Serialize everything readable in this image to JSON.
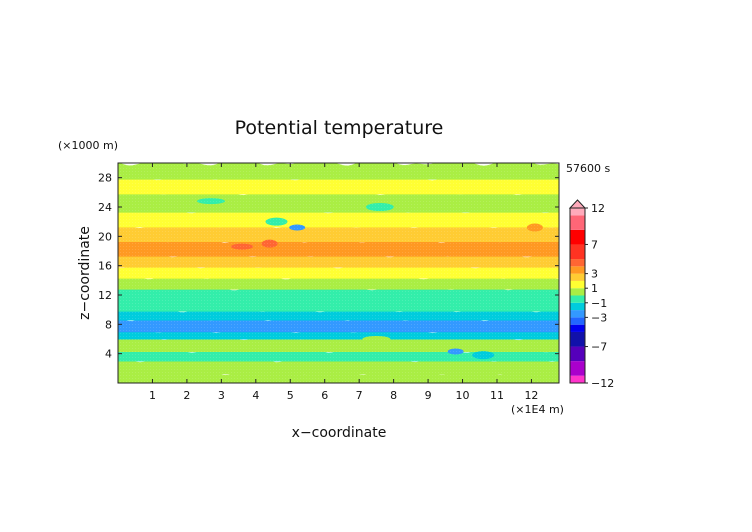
{
  "chart_data": {
    "type": "heatmap",
    "title": "Potential temperature",
    "time_label": "57600 s",
    "xlabel": "x−coordinate",
    "ylabel": "z−coordinate",
    "x_unit": "(×1E4 m)",
    "y_unit": "(×1000 m)",
    "xlim": [
      0,
      12.8
    ],
    "ylim": [
      0,
      30
    ],
    "xticks": [
      1,
      2,
      3,
      4,
      5,
      6,
      7,
      8,
      9,
      10,
      11,
      12
    ],
    "yticks": [
      4,
      8,
      12,
      16,
      20,
      24,
      28
    ],
    "colorbar": {
      "tick_labels": [
        "12",
        "7",
        "3",
        "1",
        "−1",
        "−3",
        "−7",
        "−12"
      ],
      "tick_values": [
        12,
        7,
        3,
        1,
        -1,
        -3,
        -7,
        -12
      ],
      "levels": [
        {
          "from": -12,
          "to": -11,
          "color": "#ff33cc"
        },
        {
          "from": -11,
          "to": -9,
          "color": "#aa00cc"
        },
        {
          "from": -9,
          "to": -7,
          "color": "#5500bb"
        },
        {
          "from": -7,
          "to": -5,
          "color": "#1111aa"
        },
        {
          "from": -5,
          "to": -4,
          "color": "#0000ee"
        },
        {
          "from": -4,
          "to": -3,
          "color": "#2266ff"
        },
        {
          "from": -3,
          "to": -2,
          "color": "#3399ff"
        },
        {
          "from": -2,
          "to": -1,
          "color": "#00ccdd"
        },
        {
          "from": -1,
          "to": 0,
          "color": "#33eeaa"
        },
        {
          "from": 0,
          "to": 1,
          "color": "#aaee44"
        },
        {
          "from": 1,
          "to": 2,
          "color": "#ffff33"
        },
        {
          "from": 2,
          "to": 3,
          "color": "#ffcc33"
        },
        {
          "from": 3,
          "to": 4,
          "color": "#ff9922"
        },
        {
          "from": 4,
          "to": 5,
          "color": "#ff6633"
        },
        {
          "from": 5,
          "to": 7,
          "color": "#ff3322"
        },
        {
          "from": 7,
          "to": 9,
          "color": "#ff0000"
        },
        {
          "from": 9,
          "to": 11,
          "color": "#ff6677"
        },
        {
          "from": 11,
          "to": 12,
          "color": "#ffaabb"
        }
      ]
    },
    "bands": [
      {
        "z_from": 0,
        "z_to": 1.5,
        "value": 0.4
      },
      {
        "z_from": 1.5,
        "z_to": 3.2,
        "value": 0.5
      },
      {
        "z_from": 3.2,
        "z_to": 4.5,
        "value": -0.3
      },
      {
        "z_from": 4.5,
        "z_to": 6.2,
        "value": 0.3
      },
      {
        "z_from": 6.2,
        "z_to": 7.2,
        "value": -1.5
      },
      {
        "z_from": 7.2,
        "z_to": 8.8,
        "value": -2.6
      },
      {
        "z_from": 8.8,
        "z_to": 10.0,
        "value": -1.5
      },
      {
        "z_from": 10.0,
        "z_to": 13.0,
        "value": -0.6
      },
      {
        "z_from": 13.0,
        "z_to": 14.5,
        "value": 0.4
      },
      {
        "z_from": 14.5,
        "z_to": 16.0,
        "value": 1.5
      },
      {
        "z_from": 16.0,
        "z_to": 17.5,
        "value": 2.5
      },
      {
        "z_from": 17.5,
        "z_to": 19.5,
        "value": 3.5
      },
      {
        "z_from": 19.5,
        "z_to": 21.5,
        "value": 2.6
      },
      {
        "z_from": 21.5,
        "z_to": 23.5,
        "value": 1.5
      },
      {
        "z_from": 23.5,
        "z_to": 26.0,
        "value": 0.6
      },
      {
        "z_from": 26.0,
        "z_to": 28.0,
        "value": 1.3
      },
      {
        "z_from": 28.0,
        "z_to": 30.0,
        "value": 0.5
      }
    ],
    "features": [
      {
        "x": 5.2,
        "z": 21.2,
        "value": -2.8
      },
      {
        "x": 4.6,
        "z": 22.0,
        "value": -0.8
      },
      {
        "x": 2.7,
        "z": 24.8,
        "value": -0.6
      },
      {
        "x": 4.4,
        "z": 19.0,
        "value": 4.2
      },
      {
        "x": 3.6,
        "z": 18.6,
        "value": 4.0
      },
      {
        "x": 7.6,
        "z": 24.0,
        "value": -0.9
      },
      {
        "x": 9.8,
        "z": 4.3,
        "value": -2.2
      },
      {
        "x": 10.6,
        "z": 3.8,
        "value": -2.0
      },
      {
        "x": 7.5,
        "z": 6.0,
        "value": 0.4
      },
      {
        "x": 12.1,
        "z": 21.2,
        "value": 3.2
      }
    ]
  }
}
